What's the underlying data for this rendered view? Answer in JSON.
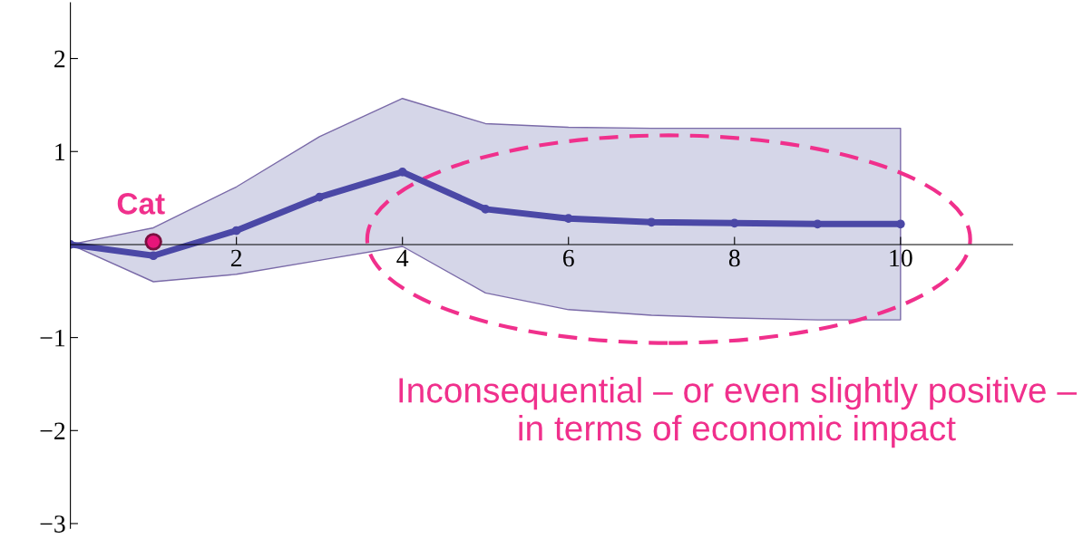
{
  "chart_data": {
    "type": "line",
    "x": [
      0,
      1,
      2,
      3,
      4,
      5,
      6,
      7,
      8,
      9,
      10
    ],
    "series": [
      {
        "color": "#4b48a6",
        "values": [
          0,
          -0.12,
          0.15,
          0.51,
          0.78,
          0.38,
          0.28,
          0.24,
          0.23,
          0.22,
          0.22
        ],
        "lower": [
          0,
          -0.4,
          -0.32,
          -0.17,
          -0.02,
          -0.52,
          -0.7,
          -0.76,
          -0.79,
          -0.81,
          -0.81
        ],
        "upper": [
          0,
          0.18,
          0.62,
          1.16,
          1.57,
          1.3,
          1.26,
          1.25,
          1.25,
          1.25,
          1.25
        ]
      }
    ],
    "xlim": [
      0,
      11.35
    ],
    "ylim": [
      -3.05,
      2.6
    ],
    "xticks": [
      2,
      4,
      6,
      8,
      10
    ],
    "yticks": [
      -3,
      -2,
      -1,
      1,
      2
    ],
    "marker": "circle",
    "line_style": "solid",
    "grid": false,
    "legend": false,
    "annotations": [
      {
        "text": "Cat",
        "x": 1,
        "y": 0.03
      },
      "Inconsequential – or even slightly positive – in terms of economic impact"
    ]
  }
}
